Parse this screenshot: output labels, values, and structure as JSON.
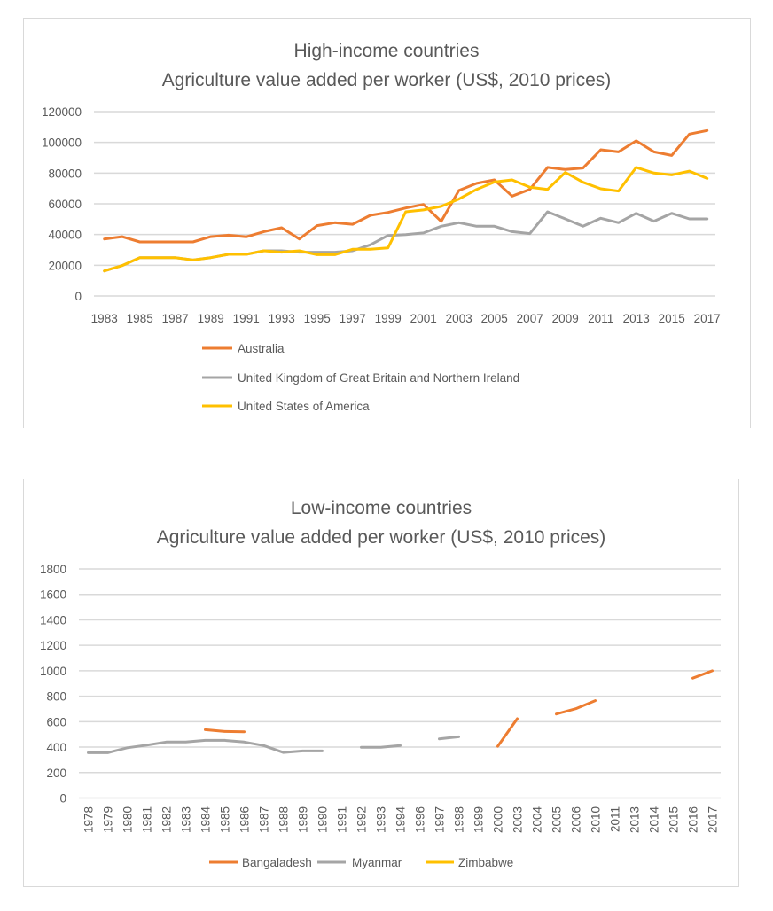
{
  "colors": {
    "australia": "#ED7D31",
    "uk": "#A5A5A5",
    "usa": "#FFC000",
    "grid": "#D9D9D9",
    "text": "#595959",
    "border": "#D9D9D9"
  },
  "chart_data": [
    {
      "type": "line",
      "title": [
        "High-income countries",
        "Agriculture value added per worker (US$, 2010 prices)"
      ],
      "ylim": [
        0,
        120000
      ],
      "yticks": [
        0,
        20000,
        40000,
        60000,
        80000,
        100000,
        120000
      ],
      "ytick_labels": [
        "0",
        "20000",
        "40000",
        "60000",
        "80000",
        "100000",
        "120000"
      ],
      "grid": true,
      "legend": "bottom",
      "x": [
        1983,
        1984,
        1985,
        1986,
        1987,
        1988,
        1989,
        1990,
        1991,
        1992,
        1993,
        1994,
        1995,
        1996,
        1997,
        1998,
        1999,
        2000,
        2001,
        2002,
        2003,
        2004,
        2005,
        2006,
        2007,
        2008,
        2009,
        2010,
        2011,
        2012,
        2013,
        2014,
        2015,
        2016,
        2017
      ],
      "xtick_labels": [
        "1983",
        "1985",
        "1987",
        "1989",
        "1991",
        "1993",
        "1995",
        "1997",
        "1999",
        "2001",
        "2003",
        "2005",
        "2007",
        "2009",
        "2011",
        "2013",
        "2015",
        "2017"
      ],
      "series": [
        {
          "name": "Australia",
          "color": "#ED7D31",
          "values": [
            37100,
            38600,
            35200,
            35200,
            35200,
            35200,
            38600,
            39600,
            38500,
            41900,
            44400,
            37100,
            45800,
            47700,
            46700,
            52500,
            54400,
            57300,
            59600,
            48600,
            68700,
            73300,
            75600,
            65000,
            69400,
            83700,
            82300,
            83300,
            95200,
            93800,
            101000,
            93800,
            91500,
            105400,
            107700
          ]
        },
        {
          "name": "United Kingdom of Great Britain and Northern Ireland",
          "color": "#A5A5A5",
          "values": [
            16300,
            19800,
            25000,
            25000,
            25000,
            23500,
            25000,
            27100,
            27100,
            29400,
            29400,
            28500,
            28500,
            28500,
            29400,
            33300,
            39400,
            40000,
            41000,
            45400,
            47700,
            45400,
            45400,
            41900,
            40600,
            54800,
            50200,
            45400,
            50600,
            47700,
            53800,
            48700,
            53800,
            50200,
            50200
          ]
        },
        {
          "name": "United States of America",
          "color": "#FFC000",
          "values": [
            16300,
            19800,
            25000,
            25000,
            25000,
            23500,
            25000,
            27100,
            27100,
            29400,
            28500,
            29400,
            26900,
            26900,
            30400,
            30400,
            31300,
            54800,
            56000,
            58300,
            63100,
            69400,
            74200,
            75600,
            70800,
            69400,
            80400,
            74000,
            69800,
            68300,
            83700,
            80000,
            78800,
            81300,
            76500
          ]
        }
      ]
    },
    {
      "type": "line",
      "title": [
        "Low-income countries",
        "Agriculture value added per worker (US$, 2010 prices)"
      ],
      "ylim": [
        0,
        1800
      ],
      "yticks": [
        0,
        200,
        400,
        600,
        800,
        1000,
        1200,
        1400,
        1600,
        1800
      ],
      "ytick_labels": [
        "0",
        "200",
        "400",
        "600",
        "800",
        "1000",
        "1200",
        "1400",
        "1600",
        "1800"
      ],
      "grid": true,
      "legend": "bottom",
      "categories": [
        "1978",
        "1979",
        "1980",
        "1981",
        "1982",
        "1983",
        "1984",
        "1985",
        "1986",
        "1987",
        "1988",
        "1989",
        "1990",
        "1991",
        "1992",
        "1993",
        "1994",
        "1996",
        "1997",
        "1998",
        "1999",
        "2000",
        "2003",
        "2004",
        "2005",
        "2006",
        "2010",
        "2011",
        "2013",
        "2014",
        "2015",
        "2016",
        "2017"
      ],
      "series": [
        {
          "name": "Bangaladesh",
          "color": "#ED7D31",
          "values": [
            null,
            null,
            null,
            null,
            null,
            null,
            537,
            523,
            521,
            null,
            null,
            null,
            null,
            null,
            null,
            null,
            null,
            null,
            null,
            null,
            null,
            407,
            623,
            null,
            660,
            702,
            765,
            null,
            null,
            null,
            null,
            942,
            1000
          ]
        },
        {
          "name": "Myanmar",
          "color": "#A5A5A5",
          "values": [
            356,
            356,
            395,
            416,
            440,
            440,
            453,
            453,
            440,
            412,
            358,
            370,
            370,
            null,
            398,
            398,
            412,
            null,
            465,
            481,
            null,
            null,
            null,
            null,
            null,
            null,
            null,
            null,
            null,
            null,
            null,
            null,
            null
          ]
        },
        {
          "name": "Zimbabwe",
          "color": "#FFC000",
          "values": [
            null,
            null,
            null,
            null,
            null,
            null,
            null,
            null,
            null,
            null,
            null,
            null,
            null,
            null,
            null,
            null,
            null,
            null,
            null,
            null,
            null,
            null,
            null,
            null,
            null,
            null,
            null,
            null,
            null,
            null,
            null,
            null,
            null
          ]
        }
      ]
    }
  ]
}
